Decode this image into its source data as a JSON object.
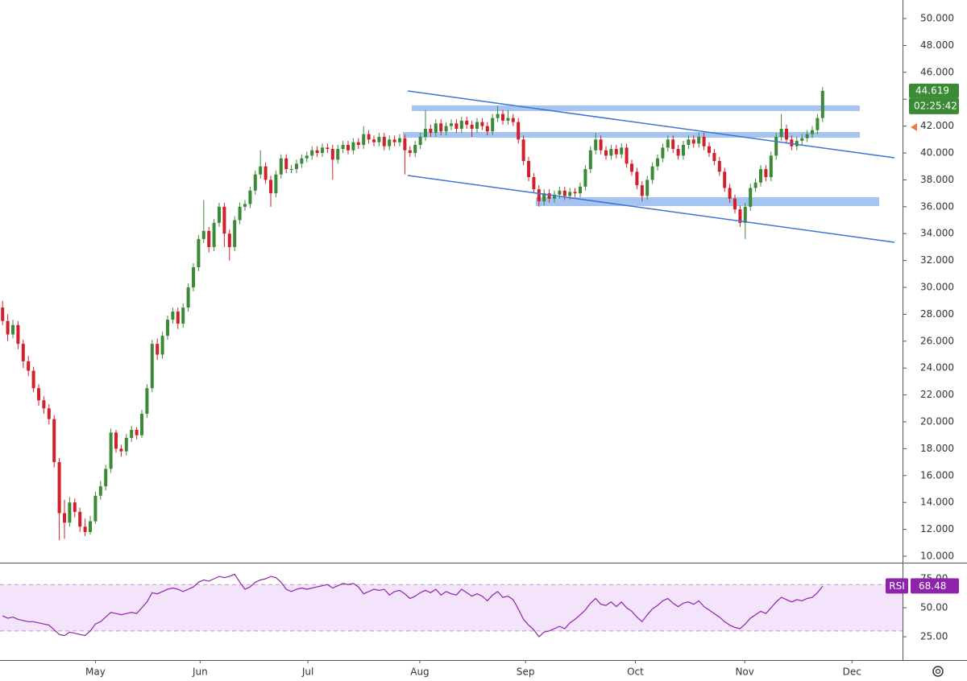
{
  "chart_data": {
    "type": "candlestick",
    "up_color": "#3b8a35",
    "down_color": "#d11f2b",
    "xlim": [
      -0.5,
      174.5
    ],
    "xticks": [
      {
        "value": 18,
        "label": "May"
      },
      {
        "value": 38.3,
        "label": "Jun"
      },
      {
        "value": 59.2,
        "label": "Jul"
      },
      {
        "value": 80.9,
        "label": "Aug"
      },
      {
        "value": 101.4,
        "label": "Sep"
      },
      {
        "value": 122.7,
        "label": "Oct"
      },
      {
        "value": 143.9,
        "label": "Nov"
      },
      {
        "value": 164.7,
        "label": "Dec"
      }
    ],
    "ylim": [
      9.46,
      51.38
    ],
    "yticks": [
      {
        "value": 10,
        "label": "10.000"
      },
      {
        "value": 12,
        "label": "12.000"
      },
      {
        "value": 14,
        "label": "14.000"
      },
      {
        "value": 16,
        "label": "16.000"
      },
      {
        "value": 18,
        "label": "18.000"
      },
      {
        "value": 20,
        "label": "20.000"
      },
      {
        "value": 22,
        "label": "22.000"
      },
      {
        "value": 24,
        "label": "24.000"
      },
      {
        "value": 26,
        "label": "26.000"
      },
      {
        "value": 28,
        "label": "28.000"
      },
      {
        "value": 30,
        "label": "30.000"
      },
      {
        "value": 32,
        "label": "32.000"
      },
      {
        "value": 34,
        "label": "34.000"
      },
      {
        "value": 36,
        "label": "36.000"
      },
      {
        "value": 38,
        "label": "38.000"
      },
      {
        "value": 40,
        "label": "40.000"
      },
      {
        "value": 42,
        "label": "42.000"
      },
      {
        "value": 44,
        "label": "44.000"
      },
      {
        "value": 46,
        "label": "46.000"
      },
      {
        "value": 48,
        "label": "48.000"
      },
      {
        "value": 50,
        "label": "50.000"
      }
    ],
    "last_price": 44.619,
    "countdown": "02:25:42",
    "candles": [
      [
        28.5,
        29.0,
        27.2,
        27.5
      ],
      [
        27.5,
        28.0,
        26.0,
        26.5
      ],
      [
        26.5,
        27.6,
        26.2,
        27.2
      ],
      [
        27.2,
        27.5,
        25.4,
        25.8
      ],
      [
        25.8,
        26.1,
        24.0,
        24.5
      ],
      [
        24.5,
        24.9,
        23.4,
        23.8
      ],
      [
        23.8,
        24.1,
        22.2,
        22.5
      ],
      [
        22.5,
        22.8,
        21.2,
        21.6
      ],
      [
        21.6,
        21.9,
        20.6,
        21.0
      ],
      [
        21.0,
        21.3,
        19.8,
        20.2
      ],
      [
        20.2,
        20.5,
        16.6,
        17.0
      ],
      [
        17.0,
        17.3,
        11.2,
        13.2
      ],
      [
        13.2,
        14.2,
        11.3,
        12.5
      ],
      [
        12.5,
        14.4,
        12.2,
        14.0
      ],
      [
        14.0,
        14.3,
        12.9,
        13.3
      ],
      [
        13.3,
        13.6,
        11.8,
        12.2
      ],
      [
        12.2,
        12.8,
        11.5,
        11.8
      ],
      [
        11.8,
        13.0,
        11.6,
        12.6
      ],
      [
        12.6,
        14.8,
        12.4,
        14.5
      ],
      [
        14.5,
        15.6,
        14.2,
        15.2
      ],
      [
        15.2,
        16.8,
        14.9,
        16.5
      ],
      [
        16.5,
        19.5,
        16.2,
        19.2
      ],
      [
        19.2,
        19.4,
        17.7,
        18.0
      ],
      [
        18.0,
        18.3,
        17.4,
        17.8
      ],
      [
        17.8,
        19.1,
        17.5,
        18.8
      ],
      [
        18.8,
        19.7,
        18.5,
        19.4
      ],
      [
        19.4,
        19.6,
        18.7,
        19.0
      ],
      [
        19.0,
        20.9,
        18.8,
        20.6
      ],
      [
        20.6,
        22.8,
        20.3,
        22.5
      ],
      [
        22.5,
        26.1,
        22.2,
        25.8
      ],
      [
        25.8,
        26.2,
        24.6,
        25.0
      ],
      [
        25.0,
        26.7,
        24.7,
        26.4
      ],
      [
        26.4,
        27.9,
        26.1,
        27.6
      ],
      [
        27.6,
        28.5,
        27.3,
        28.2
      ],
      [
        28.2,
        28.5,
        26.9,
        27.3
      ],
      [
        27.3,
        28.8,
        27.0,
        28.5
      ],
      [
        28.5,
        30.3,
        28.2,
        30.0
      ],
      [
        30.0,
        31.8,
        29.7,
        31.5
      ],
      [
        31.5,
        33.9,
        31.2,
        33.6
      ],
      [
        33.6,
        36.5,
        33.3,
        34.2
      ],
      [
        34.2,
        34.5,
        32.6,
        33.0
      ],
      [
        33.0,
        35.1,
        32.7,
        34.8
      ],
      [
        34.8,
        36.3,
        34.5,
        36.0
      ],
      [
        36.0,
        36.3,
        33.0,
        34.0
      ],
      [
        34.0,
        34.3,
        32.0,
        33.0
      ],
      [
        33.0,
        35.3,
        32.7,
        35.0
      ],
      [
        35.0,
        36.3,
        34.7,
        36.0
      ],
      [
        36.0,
        36.5,
        35.7,
        36.2
      ],
      [
        36.2,
        37.5,
        35.9,
        37.2
      ],
      [
        37.2,
        38.7,
        36.9,
        38.4
      ],
      [
        38.4,
        40.2,
        38.1,
        39.0
      ],
      [
        39.0,
        39.3,
        37.7,
        38.0
      ],
      [
        38.0,
        38.3,
        36.0,
        37.0
      ],
      [
        37.0,
        38.7,
        36.7,
        38.4
      ],
      [
        38.4,
        39.9,
        38.1,
        39.6
      ],
      [
        39.6,
        39.9,
        38.5,
        38.8
      ],
      [
        38.8,
        39.1,
        38.5,
        38.8
      ],
      [
        38.8,
        39.5,
        38.5,
        39.2
      ],
      [
        39.2,
        39.9,
        38.9,
        39.6
      ],
      [
        39.6,
        40.1,
        39.3,
        39.8
      ],
      [
        39.8,
        40.5,
        39.5,
        40.2
      ],
      [
        40.2,
        40.5,
        39.7,
        40.0
      ],
      [
        40.0,
        40.7,
        39.7,
        40.4
      ],
      [
        40.4,
        40.7,
        40.0,
        40.3
      ],
      [
        40.3,
        40.6,
        38.0,
        39.5
      ],
      [
        39.5,
        40.6,
        39.2,
        40.3
      ],
      [
        40.3,
        40.9,
        40.0,
        40.6
      ],
      [
        40.6,
        40.9,
        39.9,
        40.2
      ],
      [
        40.2,
        41.1,
        39.9,
        40.8
      ],
      [
        40.8,
        41.1,
        40.3,
        40.6
      ],
      [
        40.6,
        42.0,
        40.3,
        41.4
      ],
      [
        41.4,
        41.7,
        40.7,
        41.0
      ],
      [
        41.0,
        41.3,
        40.5,
        40.8
      ],
      [
        40.8,
        41.5,
        40.5,
        41.2
      ],
      [
        41.2,
        41.5,
        40.2,
        40.5
      ],
      [
        40.5,
        41.3,
        40.2,
        41.0
      ],
      [
        41.0,
        41.3,
        40.5,
        40.8
      ],
      [
        40.8,
        41.4,
        40.5,
        41.1
      ],
      [
        41.1,
        41.4,
        38.4,
        40.2
      ],
      [
        40.2,
        40.5,
        39.7,
        40.0
      ],
      [
        40.0,
        40.9,
        39.7,
        40.6
      ],
      [
        40.6,
        41.5,
        40.3,
        41.2
      ],
      [
        41.2,
        43.2,
        40.9,
        41.8
      ],
      [
        41.8,
        42.1,
        41.2,
        41.5
      ],
      [
        41.5,
        42.5,
        41.2,
        42.2
      ],
      [
        42.2,
        42.5,
        41.3,
        41.6
      ],
      [
        41.6,
        42.3,
        41.3,
        42.0
      ],
      [
        42.0,
        42.5,
        41.7,
        42.2
      ],
      [
        42.2,
        42.5,
        41.5,
        41.8
      ],
      [
        41.8,
        42.7,
        41.5,
        42.4
      ],
      [
        42.4,
        42.7,
        41.8,
        42.1
      ],
      [
        42.1,
        42.4,
        41.2,
        41.8
      ],
      [
        41.8,
        42.6,
        41.5,
        42.3
      ],
      [
        42.3,
        42.6,
        41.7,
        42.0
      ],
      [
        42.0,
        42.3,
        41.3,
        41.6
      ],
      [
        41.6,
        42.9,
        41.3,
        42.6
      ],
      [
        42.6,
        43.5,
        42.3,
        42.9
      ],
      [
        42.9,
        43.2,
        42.1,
        42.4
      ],
      [
        42.4,
        43.2,
        42.1,
        42.6
      ],
      [
        42.6,
        42.9,
        42.0,
        42.3
      ],
      [
        42.3,
        42.6,
        40.7,
        41.0
      ],
      [
        41.0,
        41.3,
        39.1,
        39.4
      ],
      [
        39.4,
        39.7,
        37.9,
        38.2
      ],
      [
        38.2,
        38.5,
        37.0,
        37.3
      ],
      [
        37.3,
        37.6,
        36.0,
        36.4
      ],
      [
        36.4,
        37.3,
        36.1,
        37.0
      ],
      [
        37.0,
        37.3,
        36.3,
        36.6
      ],
      [
        36.6,
        37.2,
        36.3,
        36.9
      ],
      [
        36.9,
        37.5,
        36.6,
        37.2
      ],
      [
        37.2,
        37.5,
        36.5,
        36.8
      ],
      [
        36.8,
        37.4,
        36.5,
        37.1
      ],
      [
        37.1,
        37.4,
        36.7,
        37.0
      ],
      [
        37.0,
        37.8,
        36.7,
        37.5
      ],
      [
        37.5,
        39.1,
        37.2,
        38.8
      ],
      [
        38.8,
        40.5,
        38.5,
        40.2
      ],
      [
        40.2,
        41.5,
        39.9,
        41.0
      ],
      [
        41.0,
        41.3,
        39.9,
        40.2
      ],
      [
        40.2,
        40.5,
        39.5,
        39.8
      ],
      [
        39.8,
        40.6,
        39.5,
        40.3
      ],
      [
        40.3,
        40.6,
        39.6,
        39.9
      ],
      [
        39.9,
        40.7,
        39.6,
        40.4
      ],
      [
        40.4,
        40.7,
        38.9,
        39.2
      ],
      [
        39.2,
        39.5,
        38.3,
        38.6
      ],
      [
        38.6,
        38.9,
        37.3,
        37.6
      ],
      [
        37.6,
        37.9,
        36.4,
        36.8
      ],
      [
        36.8,
        38.3,
        36.5,
        38.0
      ],
      [
        38.0,
        39.3,
        37.7,
        39.0
      ],
      [
        39.0,
        39.9,
        38.7,
        39.6
      ],
      [
        39.6,
        40.7,
        39.3,
        40.4
      ],
      [
        40.4,
        41.3,
        40.1,
        41.0
      ],
      [
        41.0,
        41.3,
        40.0,
        40.3
      ],
      [
        40.3,
        40.6,
        39.5,
        39.8
      ],
      [
        39.8,
        40.9,
        39.5,
        40.6
      ],
      [
        40.6,
        41.3,
        40.3,
        41.0
      ],
      [
        41.0,
        41.3,
        40.4,
        40.7
      ],
      [
        40.7,
        41.5,
        40.4,
        41.2
      ],
      [
        41.2,
        41.5,
        40.2,
        40.5
      ],
      [
        40.5,
        40.8,
        39.7,
        40.0
      ],
      [
        40.0,
        40.3,
        39.1,
        39.4
      ],
      [
        39.4,
        39.7,
        38.3,
        38.6
      ],
      [
        38.6,
        38.9,
        37.1,
        37.4
      ],
      [
        37.4,
        37.7,
        36.3,
        36.6
      ],
      [
        36.6,
        36.9,
        35.5,
        35.8
      ],
      [
        35.8,
        36.1,
        34.5,
        34.8
      ],
      [
        34.8,
        36.3,
        33.6,
        36.0
      ],
      [
        36.0,
        37.7,
        35.7,
        37.4
      ],
      [
        37.4,
        38.1,
        37.1,
        37.8
      ],
      [
        37.8,
        39.1,
        37.5,
        38.8
      ],
      [
        38.8,
        39.1,
        37.9,
        38.2
      ],
      [
        38.2,
        40.1,
        37.9,
        39.8
      ],
      [
        39.8,
        41.5,
        39.5,
        41.2
      ],
      [
        41.2,
        42.9,
        40.9,
        41.8
      ],
      [
        41.8,
        42.1,
        40.7,
        41.0
      ],
      [
        41.0,
        41.3,
        40.2,
        40.5
      ],
      [
        40.5,
        41.2,
        40.2,
        40.9
      ],
      [
        40.9,
        41.4,
        40.6,
        41.1
      ],
      [
        41.1,
        41.7,
        40.8,
        41.4
      ],
      [
        41.4,
        42.0,
        41.1,
        41.7
      ],
      [
        41.7,
        42.9,
        41.4,
        42.6
      ],
      [
        42.6,
        44.9,
        42.3,
        44.619
      ]
    ],
    "rsi": {
      "name": "RSI",
      "color": "#8e24aa",
      "value_label": "68.48",
      "ylim": [
        4.9,
        88.2
      ],
      "yticks": [
        {
          "value": 75,
          "label": "75.00"
        },
        {
          "value": 50,
          "label": "50.00"
        },
        {
          "value": 25,
          "label": "25.00"
        }
      ],
      "band": [
        30,
        70
      ],
      "values": [
        43,
        41,
        42,
        40,
        39,
        38,
        38,
        37,
        36,
        35,
        31,
        27,
        26,
        29,
        28,
        27,
        26,
        30,
        36,
        38,
        42,
        46,
        45,
        44,
        45,
        46,
        45,
        50,
        55,
        63,
        62,
        64,
        66,
        67,
        66,
        64,
        66,
        68,
        72,
        74,
        73,
        75,
        77,
        76,
        77,
        79,
        72,
        66,
        68,
        72,
        74,
        75,
        77,
        76,
        72,
        66,
        64,
        66,
        67,
        66,
        67,
        68,
        69,
        70,
        67,
        69,
        71,
        70,
        71,
        68,
        62,
        64,
        66,
        65,
        66,
        61,
        64,
        65,
        62,
        58,
        60,
        63,
        65,
        63,
        66,
        61,
        64,
        62,
        61,
        66,
        63,
        60,
        62,
        60,
        56,
        61,
        64,
        59,
        60,
        57,
        49,
        40,
        35,
        31,
        25,
        29,
        30,
        32,
        34,
        32,
        37,
        40,
        44,
        48,
        54,
        58,
        53,
        52,
        55,
        51,
        55,
        50,
        47,
        42,
        38,
        44,
        49,
        52,
        56,
        58,
        54,
        51,
        54,
        55,
        53,
        56,
        51,
        48,
        45,
        42,
        38,
        35,
        33,
        32,
        36,
        41,
        44,
        47,
        45,
        50,
        55,
        59,
        57,
        55,
        57,
        56,
        58,
        59,
        63,
        68.48
      ]
    }
  }
}
